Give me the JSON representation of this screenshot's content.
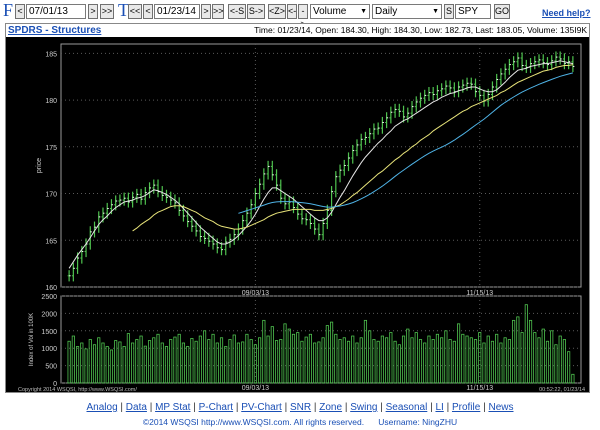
{
  "toolbar": {
    "from_letter": "F",
    "to_letter": "T",
    "prev": "<",
    "next": ">",
    "fast_back": "<<",
    "fast_fwd": ">>",
    "from_date": "07/01/13",
    "to_date": "01/23/14",
    "shift_left": "<-S",
    "shift_right": "S->",
    "zoom": "<Z>",
    "chevron_back": "<-",
    "chevron_fwd": "->",
    "study_select": "Volume",
    "period_select": "Daily",
    "s_button": "S",
    "symbol": "SPY",
    "go": "GO",
    "help": "Need help?"
  },
  "panel": {
    "title": "SPDRS - Structures",
    "info": "Time: 01/23/14, Open: 184.30, High: 184.30, Low: 182.73, Last: 183.05, Volume: 135I9K"
  },
  "chart_data": [
    {
      "type": "line",
      "name": "price",
      "ylabel": "price",
      "ylim": [
        160,
        186
      ],
      "yticks": [
        160,
        165,
        170,
        175,
        180,
        185
      ],
      "xtick_labels": [
        "09/03/13",
        "11/15/13"
      ],
      "xtick_index": [
        44,
        97
      ],
      "series": [
        {
          "name": "close",
          "values": [
            161.2,
            162.0,
            163.1,
            163.8,
            164.6,
            165.9,
            166.4,
            167.5,
            167.9,
            168.4,
            168.8,
            169.2,
            169.3,
            169.5,
            169.1,
            169.6,
            169.9,
            169.4,
            170.1,
            170.6,
            170.9,
            170.2,
            169.8,
            169.6,
            169.3,
            169.0,
            168.2,
            167.6,
            167.0,
            166.5,
            166.0,
            165.4,
            165.2,
            164.9,
            164.6,
            164.2,
            164.0,
            164.8,
            165.1,
            165.6,
            166.2,
            167.1,
            167.9,
            168.8,
            170.0,
            171.0,
            172.1,
            172.9,
            172.0,
            170.9,
            169.5,
            168.9,
            169.1,
            168.5,
            167.8,
            167.3,
            167.2,
            166.8,
            166.2,
            165.6,
            166.8,
            168.2,
            170.2,
            171.8,
            172.5,
            173.0,
            173.8,
            174.6,
            175.2,
            175.8,
            176.0,
            176.4,
            176.9,
            177.0,
            177.6,
            178.1,
            178.7,
            179.0,
            178.8,
            178.2,
            178.6,
            179.3,
            179.8,
            180.2,
            180.5,
            180.8,
            180.6,
            181.0,
            181.2,
            181.5,
            181.3,
            180.9,
            181.4,
            181.6,
            181.8,
            181.7,
            180.9,
            180.5,
            179.9,
            180.6,
            181.4,
            182.2,
            182.8,
            183.3,
            183.8,
            184.1,
            184.5,
            183.7,
            183.5,
            183.9,
            184.1,
            184.3,
            184.0,
            183.8,
            184.2,
            184.6,
            184.4,
            183.9,
            184.1,
            183.6
          ]
        },
        {
          "name": "ma-white",
          "values": [
            162.0,
            162.7,
            163.4,
            164.0,
            164.6,
            165.3,
            166.0,
            166.7,
            167.2,
            167.6,
            168.1,
            168.5,
            168.8,
            169.1,
            169.2,
            169.3,
            169.5,
            169.6,
            169.8,
            170.1,
            170.4,
            170.3,
            170.1,
            169.9,
            169.6,
            169.3,
            168.9,
            168.4,
            167.9,
            167.4,
            166.9,
            166.4,
            166.0,
            165.6,
            165.2,
            164.8,
            164.6,
            164.6,
            164.8,
            165.1,
            165.5,
            166.0,
            166.5,
            167.1,
            167.8,
            168.6,
            169.4,
            170.1,
            170.6,
            170.6,
            170.3,
            170.0,
            169.7,
            169.4,
            169.0,
            168.6,
            168.2,
            167.8,
            167.4,
            167.1,
            167.1,
            167.4,
            168.0,
            168.8,
            169.6,
            170.3,
            171.1,
            171.9,
            172.6,
            173.3,
            173.9,
            174.4,
            174.9,
            175.4,
            175.8,
            176.3,
            176.7,
            177.2,
            177.5,
            177.8,
            178.0,
            178.3,
            178.6,
            178.9,
            179.2,
            179.5,
            179.8,
            180.0,
            180.3,
            180.5,
            180.7,
            180.8,
            181.0,
            181.1,
            181.3,
            181.4,
            181.4,
            181.2,
            181.0,
            180.9,
            180.9,
            181.1,
            181.5,
            181.9,
            182.4,
            182.8,
            183.2,
            183.3,
            183.4,
            183.6,
            183.7,
            183.8,
            183.9,
            183.9,
            184.0,
            184.1,
            184.2,
            184.1,
            184.0,
            183.9
          ]
        },
        {
          "name": "ma-yellow",
          "values": [
            null,
            null,
            null,
            null,
            null,
            null,
            null,
            null,
            null,
            null,
            null,
            null,
            null,
            null,
            null,
            166.0,
            166.3,
            166.7,
            167.0,
            167.3,
            167.7,
            168.0,
            168.2,
            168.4,
            168.6,
            168.7,
            168.7,
            168.6,
            168.4,
            168.2,
            168.0,
            167.7,
            167.4,
            167.2,
            167.0,
            166.7,
            166.5,
            166.4,
            166.3,
            166.2,
            166.2,
            166.3,
            166.4,
            166.6,
            166.8,
            167.0,
            167.2,
            167.5,
            167.7,
            167.9,
            168.0,
            168.1,
            168.2,
            168.3,
            168.3,
            168.3,
            168.3,
            168.3,
            168.2,
            168.2,
            168.2,
            168.3,
            168.4,
            168.6,
            168.8,
            169.1,
            169.4,
            169.8,
            170.1,
            170.5,
            170.9,
            171.3,
            171.7,
            172.1,
            172.4,
            172.8,
            173.2,
            173.6,
            173.9,
            174.3,
            174.6,
            175.0,
            175.3,
            175.7,
            176.0,
            176.3,
            176.7,
            177.0,
            177.3,
            177.6,
            177.9,
            178.2,
            178.5,
            178.8,
            179.0,
            179.3,
            179.5,
            179.7,
            179.9,
            180.1,
            180.3,
            180.5,
            180.8,
            181.0,
            181.3,
            181.6,
            181.9,
            182.1,
            182.3,
            182.5,
            182.7,
            182.9,
            183.1,
            183.2,
            183.3,
            183.5,
            183.6,
            183.7,
            183.7,
            183.8
          ]
        },
        {
          "name": "ma-cyan",
          "values": [
            null,
            null,
            null,
            null,
            null,
            null,
            null,
            null,
            null,
            null,
            null,
            null,
            null,
            null,
            null,
            null,
            null,
            null,
            null,
            null,
            null,
            null,
            null,
            null,
            null,
            null,
            null,
            null,
            null,
            null,
            null,
            null,
            null,
            null,
            null,
            null,
            null,
            null,
            null,
            null,
            null,
            null,
            null,
            null,
            null,
            null,
            null,
            null,
            null,
            null,
            null,
            null,
            null,
            null,
            null,
            null,
            null,
            null,
            null,
            null,
            null,
            null,
            null,
            null,
            null,
            null,
            null,
            null,
            null,
            null,
            null,
            null,
            null,
            null,
            null,
            null,
            null,
            null,
            null,
            null,
            null,
            null,
            null,
            null,
            null,
            null,
            null,
            null,
            null,
            null,
            null,
            null,
            null,
            null,
            null,
            null,
            null,
            null,
            null,
            null,
            null,
            null,
            null,
            null,
            null,
            null,
            null,
            null,
            null,
            null,
            null,
            null,
            null,
            null,
            null,
            null,
            null,
            null,
            null,
            null
          ]
        }
      ]
    },
    {
      "type": "bar",
      "name": "volume",
      "ylabel": "Index of Vol in 100K",
      "ylim": [
        0,
        2500
      ],
      "yticks": [
        0,
        500,
        1000,
        1500,
        2000,
        2500
      ],
      "xtick_labels": [
        "09/03/13",
        "11/15/13"
      ],
      "xtick_index": [
        44,
        97
      ],
      "values": [
        1200,
        1350,
        1050,
        1150,
        980,
        1250,
        1100,
        1300,
        1150,
        1050,
        950,
        1220,
        1180,
        1050,
        1420,
        1150,
        1250,
        1350,
        1060,
        1220,
        1300,
        1400,
        1150,
        1050,
        1250,
        1320,
        1400,
        1150,
        1050,
        1280,
        1200,
        1350,
        1500,
        1250,
        1400,
        1150,
        1300,
        1050,
        1250,
        1380,
        1150,
        1180,
        1400,
        1250,
        1100,
        1300,
        1800,
        1350,
        1620,
        1220,
        1250,
        1700,
        1550,
        1400,
        1450,
        1200,
        1320,
        1400,
        1150,
        1180,
        1300,
        1650,
        1750,
        1400,
        1250,
        1300,
        1200,
        1350,
        1150,
        1300,
        1800,
        1500,
        1250,
        1200,
        1350,
        1300,
        1450,
        1200,
        1100,
        1350,
        1550,
        1300,
        1450,
        1250,
        1150,
        1350,
        1250,
        1400,
        1300,
        1500,
        1250,
        1200,
        1700,
        1400,
        1350,
        1300,
        1250,
        1450,
        1150,
        1350,
        1200,
        1400,
        1150,
        1300,
        1250,
        1800,
        1900,
        1450,
        2250,
        1800,
        1450,
        1300,
        1550,
        1200,
        1500,
        1100,
        1350,
        1250,
        900,
        250
      ],
      "pane_labels": {
        "left": "Copyright 2014 WSQSI, http://www.WSQSI.com/",
        "right": "00:52:22, 01/23/14"
      }
    }
  ],
  "footer": {
    "links": [
      "Analog",
      "Data",
      "MP Stat",
      "P-Chart",
      "PV-Chart",
      "SNR",
      "Zone",
      "Swing",
      "Seasonal",
      "LI",
      "Profile",
      "News"
    ],
    "copyright": "©2014 WSQSI http://www.WSQSI.com. All rights reserved.",
    "username": "Username: NingZHU"
  }
}
